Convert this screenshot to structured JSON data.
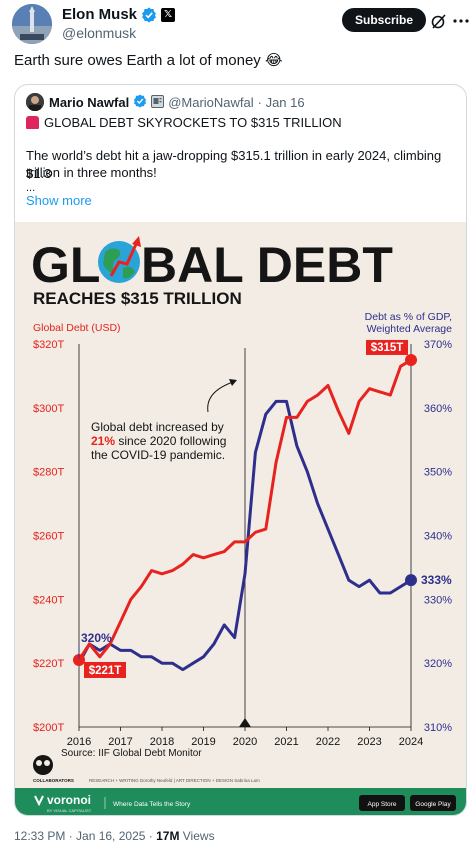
{
  "author": {
    "name": "Elon Musk",
    "handle": "@elonmusk",
    "subscribe_label": "Subscribe"
  },
  "tweet": {
    "text": "Earth sure owes Earth a lot of money 😂"
  },
  "quoted": {
    "name": "Mario Nawfal",
    "handle": "@MarioNawfal",
    "date": "· Jan 16",
    "headline": "GLOBAL DEBT SKYROCKETS TO $315 TRILLION",
    "body_line1": "The world’s debt hit a jaw-dropping $315.1 trillion in early 2024, climbing $1.3",
    "body_line2": "trillion in three months!",
    "ellipsis": "...",
    "show_more": "Show more"
  },
  "infographic": {
    "title_part1": "GL",
    "title_part2": "BAL DEBT",
    "subtitle": "REACHES $315 TRILLION",
    "annotation_line1": "Global debt increased by",
    "annotation_pct": "21%",
    "annotation_line2_rest": " since 2020 following",
    "annotation_line3": "the COVID-19 pandemic.",
    "source": "Source: IIF Global Debt Monitor",
    "collaborators_label": "COLLABORATORS",
    "credits": "RESEARCH + WRITING Dorothy Neufeld  |  ART DIRECTION + DESIGN Sabrina Lam",
    "brand": "voronoi",
    "brand_sub": "BY VISUAL CAPITALIST",
    "brand_tagline": "Where Data Tells the Story",
    "app_store": "App Store",
    "google_play": "Google Play",
    "start_debt_label": "$221T",
    "end_debt_label": "$315T",
    "start_gdp_label": "320%",
    "end_gdp_label": "333%",
    "colors": {
      "debt": "#e8231f",
      "gdp": "#2e2f8c",
      "bg": "#f2ece4",
      "footer": "#1f8c5b"
    }
  },
  "chart_data": {
    "type": "line",
    "left_axis_title": "Global Debt (USD)",
    "right_axis_title_line1": "Debt as % of GDP,",
    "right_axis_title_line2": "Weighted Average",
    "x_ticks": [
      "2016",
      "2017",
      "2018",
      "2019",
      "2020",
      "2021",
      "2022",
      "2023",
      "2024"
    ],
    "y_left_ticks": [
      "$200T",
      "$220T",
      "$240T",
      "$260T",
      "$280T",
      "$300T",
      "$320T"
    ],
    "y_right_ticks": [
      "310%",
      "320%",
      "330%",
      "340%",
      "350%",
      "360%",
      "370%"
    ],
    "ylim_left": [
      200,
      320
    ],
    "ylim_right": [
      310,
      370
    ],
    "xlim": [
      2016,
      2024
    ],
    "series": [
      {
        "name": "Global Debt (USD)",
        "axis": "left",
        "x": [
          2016.0,
          2016.25,
          2016.5,
          2016.75,
          2017.0,
          2017.25,
          2017.5,
          2017.75,
          2018.0,
          2018.25,
          2018.5,
          2018.75,
          2019.0,
          2019.25,
          2019.5,
          2019.75,
          2020.0,
          2020.25,
          2020.5,
          2020.75,
          2021.0,
          2021.25,
          2021.5,
          2021.75,
          2022.0,
          2022.25,
          2022.5,
          2022.75,
          2023.0,
          2023.25,
          2023.5,
          2023.75,
          2024.0
        ],
        "values": [
          221,
          226,
          222,
          226,
          233,
          240,
          244,
          249,
          248,
          249,
          251,
          254,
          253,
          254,
          255,
          258,
          258,
          261,
          262,
          283,
          297,
          297,
          302,
          304,
          307,
          299,
          292,
          302,
          306,
          305,
          304,
          313,
          315
        ]
      },
      {
        "name": "Debt as % of GDP, Weighted Average",
        "axis": "right",
        "x": [
          2016.0,
          2016.25,
          2016.5,
          2016.75,
          2017.0,
          2017.25,
          2017.5,
          2017.75,
          2018.0,
          2018.25,
          2018.5,
          2018.75,
          2019.0,
          2019.25,
          2019.5,
          2019.75,
          2020.0,
          2020.25,
          2020.5,
          2020.75,
          2021.0,
          2021.25,
          2021.5,
          2021.75,
          2022.0,
          2022.25,
          2022.5,
          2022.75,
          2023.0,
          2023.25,
          2023.5,
          2023.75,
          2024.0
        ],
        "values": [
          320,
          323,
          322,
          323,
          322,
          322,
          321,
          321,
          320,
          320,
          319,
          320,
          321,
          323,
          326,
          324,
          334,
          353,
          359,
          361,
          361,
          354,
          350,
          345,
          341,
          337,
          333,
          332,
          333,
          331,
          331,
          332,
          333
        ]
      }
    ],
    "event_marker_x": 2020,
    "grid": false,
    "legend": "axis titles top-left and top-right"
  },
  "meta": {
    "timestamp": "12:33 PM · Jan 16, 2025 · ",
    "views_count": "17M",
    "views_label": " Views"
  }
}
